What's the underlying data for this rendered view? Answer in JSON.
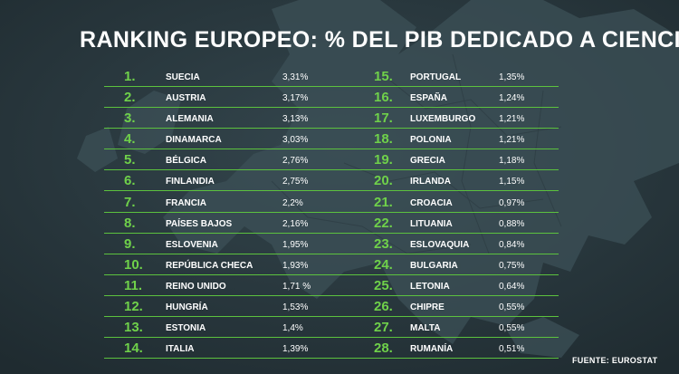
{
  "title": "RANKING EUROPEO: % DEL PIB DEDICADO A CIENCIA",
  "source": "FUENTE: EUROSTAT",
  "colors": {
    "background": "#2b3a40",
    "accent": "#5cc23e",
    "text": "#ffffff"
  },
  "left_rows": [
    {
      "rank": "1.",
      "country": "SUECIA",
      "value": "3,31%"
    },
    {
      "rank": "2.",
      "country": "AUSTRIA",
      "value": "3,17%"
    },
    {
      "rank": "3.",
      "country": "ALEMANIA",
      "value": "3,13%"
    },
    {
      "rank": "4.",
      "country": "DINAMARCA",
      "value": "3,03%"
    },
    {
      "rank": "5.",
      "country": "BÉLGICA",
      "value": "2,76%"
    },
    {
      "rank": "6.",
      "country": "FINLANDIA",
      "value": "2,75%"
    },
    {
      "rank": "7.",
      "country": "FRANCIA",
      "value": "2,2%"
    },
    {
      "rank": "8.",
      "country": "PAÍSES BAJOS",
      "value": "2,16%"
    },
    {
      "rank": "9.",
      "country": "ESLOVENIA",
      "value": "1,95%"
    },
    {
      "rank": "10.",
      "country": "REPÚBLICA CHECA",
      "value": "1,93%"
    },
    {
      "rank": "11.",
      "country": "REINO UNIDO",
      "value": "1,71 %"
    },
    {
      "rank": "12.",
      "country": "HUNGRÍA",
      "value": "1,53%"
    },
    {
      "rank": "13.",
      "country": "ESTONIA",
      "value": "1,4%"
    },
    {
      "rank": "14.",
      "country": "ITALIA",
      "value": "1,39%"
    }
  ],
  "right_rows": [
    {
      "rank": "15.",
      "country": "PORTUGAL",
      "value": "1,35%"
    },
    {
      "rank": "16.",
      "country": "ESPAÑA",
      "value": "1,24%"
    },
    {
      "rank": "17.",
      "country": "LUXEMBURGO",
      "value": "1,21%"
    },
    {
      "rank": "18.",
      "country": "POLONIA",
      "value": "1,21%"
    },
    {
      "rank": "19.",
      "country": "GRECIA",
      "value": "1,18%"
    },
    {
      "rank": "20.",
      "country": "IRLANDA",
      "value": "1,15%"
    },
    {
      "rank": "21.",
      "country": "CROACIA",
      "value": "0,97%"
    },
    {
      "rank": "22.",
      "country": "LITUANIA",
      "value": "0,88%"
    },
    {
      "rank": "23.",
      "country": "ESLOVAQUIA",
      "value": "0,84%"
    },
    {
      "rank": "24.",
      "country": "BULGARIA",
      "value": "0,75%"
    },
    {
      "rank": "25.",
      "country": "LETONIA",
      "value": "0,64%"
    },
    {
      "rank": "26.",
      "country": "CHIPRE",
      "value": "0,55%"
    },
    {
      "rank": "27.",
      "country": "MALTA",
      "value": "0,55%"
    },
    {
      "rank": "28.",
      "country": "RUMANÍA",
      "value": "0,51%"
    }
  ]
}
